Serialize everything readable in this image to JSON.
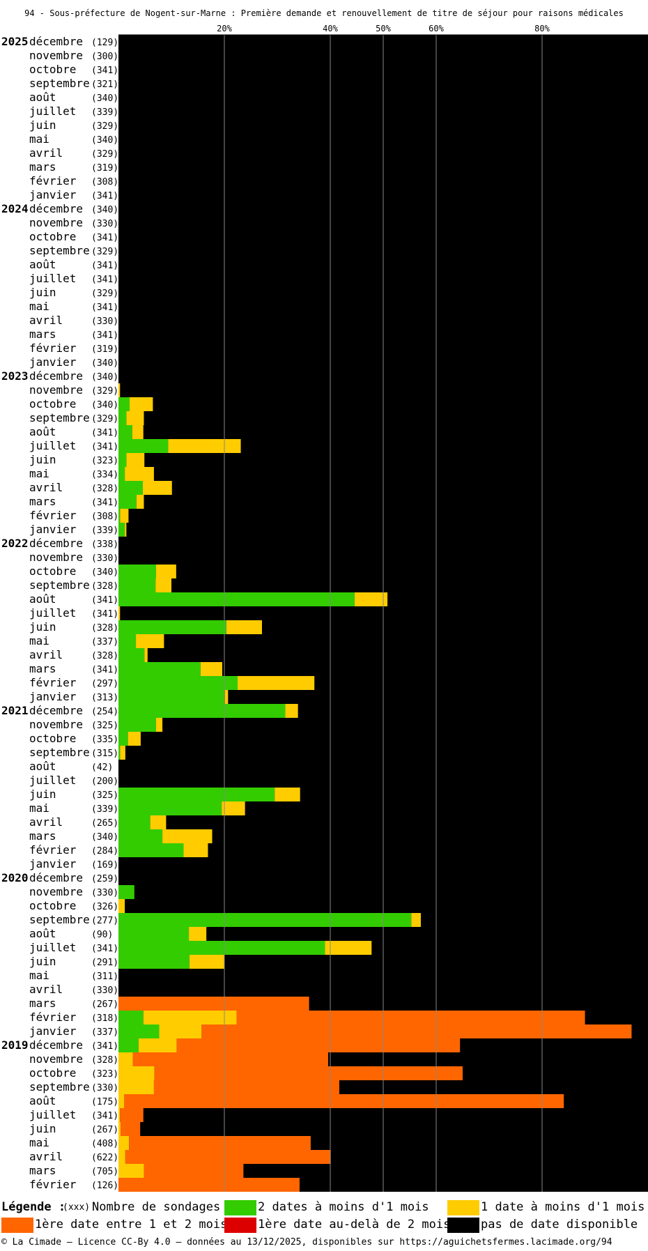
{
  "page": {
    "title": "94 - Sous-préfecture de Nogent-sur-Marne : Première demande et renouvellement de titre de séjour pour raisons médicales",
    "footer": "© La Cimade — Licence CC-By 4.0 — données au 13/12/2025, disponibles sur https://aguichetsfermes.lacimade.org/94"
  },
  "legend": {
    "heading": "Légende :",
    "count_hint": "(xxx)",
    "count_label": "Nombre de sondages",
    "items": [
      {
        "key": "two_dates",
        "label": "2 dates à moins d'1 mois",
        "color": "#33cc00"
      },
      {
        "key": "one_date",
        "label": "1 date à moins d'1 mois",
        "color": "#ffcc00"
      },
      {
        "key": "first_1_2",
        "label": "1ère date entre 1 et 2 mois",
        "color": "#ff6600"
      },
      {
        "key": "first_over_2",
        "label": "1ère date au-delà de 2 mois",
        "color": "#dd0000"
      },
      {
        "key": "none",
        "label": "pas de date disponible",
        "color": "#000000"
      }
    ]
  },
  "chart_data": {
    "type": "bar",
    "orientation": "horizontal",
    "stacked": true,
    "xlim": [
      0,
      100
    ],
    "x_ticks": [
      20,
      40,
      50,
      60,
      80
    ],
    "x_tick_labels": [
      "20%",
      "40%",
      "50%",
      "60%",
      "80%"
    ],
    "grid": true,
    "legend_placement": "bottom",
    "series": [
      {
        "name": "2 dates à moins d'1 mois",
        "color": "#33cc00"
      },
      {
        "name": "1 date à moins d'1 mois",
        "color": "#ffcc00"
      },
      {
        "name": "1ère date entre 1 et 2 mois",
        "color": "#ff6600"
      },
      {
        "name": "1ère date au-delà de 2 mois",
        "color": "#dd0000"
      },
      {
        "name": "pas de date disponible",
        "color": "#000000"
      }
    ],
    "rows": [
      {
        "year": "2025",
        "month": "décembre",
        "count": "(129)",
        "green": 0,
        "yellow": 0,
        "orange": 0,
        "red": 0
      },
      {
        "year": "",
        "month": "novembre",
        "count": "(300)",
        "green": 0,
        "yellow": 0,
        "orange": 0,
        "red": 0
      },
      {
        "year": "",
        "month": "octobre",
        "count": "(341)",
        "green": 0,
        "yellow": 0,
        "orange": 0,
        "red": 0
      },
      {
        "year": "",
        "month": "septembre",
        "count": "(321)",
        "green": 0,
        "yellow": 0,
        "orange": 0,
        "red": 0
      },
      {
        "year": "",
        "month": "août",
        "count": "(340)",
        "green": 0,
        "yellow": 0,
        "orange": 0,
        "red": 0
      },
      {
        "year": "",
        "month": "juillet",
        "count": "(339)",
        "green": 0,
        "yellow": 0,
        "orange": 0,
        "red": 0
      },
      {
        "year": "",
        "month": "juin",
        "count": "(329)",
        "green": 0,
        "yellow": 0,
        "orange": 0,
        "red": 0
      },
      {
        "year": "",
        "month": "mai",
        "count": "(340)",
        "green": 0,
        "yellow": 0,
        "orange": 0,
        "red": 0
      },
      {
        "year": "",
        "month": "avril",
        "count": "(329)",
        "green": 0,
        "yellow": 0,
        "orange": 0,
        "red": 0
      },
      {
        "year": "",
        "month": "mars",
        "count": "(319)",
        "green": 0,
        "yellow": 0,
        "orange": 0,
        "red": 0
      },
      {
        "year": "",
        "month": "février",
        "count": "(308)",
        "green": 0,
        "yellow": 0,
        "orange": 0,
        "red": 0
      },
      {
        "year": "",
        "month": "janvier",
        "count": "(341)",
        "green": 0,
        "yellow": 0,
        "orange": 0,
        "red": 0
      },
      {
        "year": "2024",
        "month": "décembre",
        "count": "(340)",
        "green": 0,
        "yellow": 0,
        "orange": 0,
        "red": 0
      },
      {
        "year": "",
        "month": "novembre",
        "count": "(330)",
        "green": 0,
        "yellow": 0,
        "orange": 0,
        "red": 0
      },
      {
        "year": "",
        "month": "octobre",
        "count": "(341)",
        "green": 0,
        "yellow": 0,
        "orange": 0,
        "red": 0
      },
      {
        "year": "",
        "month": "septembre",
        "count": "(329)",
        "green": 0,
        "yellow": 0,
        "orange": 0,
        "red": 0
      },
      {
        "year": "",
        "month": "août",
        "count": "(341)",
        "green": 0,
        "yellow": 0,
        "orange": 0,
        "red": 0
      },
      {
        "year": "",
        "month": "juillet",
        "count": "(341)",
        "green": 0,
        "yellow": 0,
        "orange": 0,
        "red": 0
      },
      {
        "year": "",
        "month": "juin",
        "count": "(329)",
        "green": 0,
        "yellow": 0,
        "orange": 0,
        "red": 0
      },
      {
        "year": "",
        "month": "mai",
        "count": "(341)",
        "green": 0,
        "yellow": 0,
        "orange": 0,
        "red": 0
      },
      {
        "year": "",
        "month": "avril",
        "count": "(330)",
        "green": 0,
        "yellow": 0,
        "orange": 0,
        "red": 0
      },
      {
        "year": "",
        "month": "mars",
        "count": "(341)",
        "green": 0,
        "yellow": 0,
        "orange": 0,
        "red": 0
      },
      {
        "year": "",
        "month": "février",
        "count": "(319)",
        "green": 0,
        "yellow": 0,
        "orange": 0,
        "red": 0
      },
      {
        "year": "",
        "month": "janvier",
        "count": "(340)",
        "green": 0,
        "yellow": 0,
        "orange": 0,
        "red": 0
      },
      {
        "year": "2023",
        "month": "décembre",
        "count": "(340)",
        "green": 0,
        "yellow": 0,
        "orange": 0,
        "red": 0
      },
      {
        "year": "",
        "month": "novembre",
        "count": "(329)",
        "green": 0,
        "yellow": 0.3,
        "orange": 0,
        "red": 0
      },
      {
        "year": "",
        "month": "octobre",
        "count": "(340)",
        "green": 2.1,
        "yellow": 4.4,
        "orange": 0,
        "red": 0
      },
      {
        "year": "",
        "month": "septembre",
        "count": "(329)",
        "green": 1.5,
        "yellow": 3.3,
        "orange": 0,
        "red": 0
      },
      {
        "year": "",
        "month": "août",
        "count": "(341)",
        "green": 2.6,
        "yellow": 2.1,
        "orange": 0,
        "red": 0
      },
      {
        "year": "",
        "month": "juillet",
        "count": "(341)",
        "green": 9.4,
        "yellow": 13.7,
        "orange": 0,
        "red": 0
      },
      {
        "year": "",
        "month": "juin",
        "count": "(323)",
        "green": 1.5,
        "yellow": 3.4,
        "orange": 0,
        "red": 0
      },
      {
        "year": "",
        "month": "mai",
        "count": "(334)",
        "green": 1.2,
        "yellow": 5.5,
        "orange": 0,
        "red": 0
      },
      {
        "year": "",
        "month": "avril",
        "count": "(328)",
        "green": 4.6,
        "yellow": 5.5,
        "orange": 0,
        "red": 0
      },
      {
        "year": "",
        "month": "mars",
        "count": "(341)",
        "green": 3.4,
        "yellow": 1.4,
        "orange": 0,
        "red": 0
      },
      {
        "year": "",
        "month": "février",
        "count": "(308)",
        "green": 0.3,
        "yellow": 1.6,
        "orange": 0,
        "red": 0
      },
      {
        "year": "",
        "month": "janvier",
        "count": "(339)",
        "green": 1.2,
        "yellow": 0.3,
        "orange": 0,
        "red": 0
      },
      {
        "year": "2022",
        "month": "décembre",
        "count": "(338)",
        "green": 0,
        "yellow": 0,
        "orange": 0,
        "red": 0
      },
      {
        "year": "",
        "month": "novembre",
        "count": "(330)",
        "green": 0,
        "yellow": 0,
        "orange": 0,
        "red": 0
      },
      {
        "year": "",
        "month": "octobre",
        "count": "(340)",
        "green": 7.1,
        "yellow": 3.8,
        "orange": 0,
        "red": 0
      },
      {
        "year": "",
        "month": "septembre",
        "count": "(328)",
        "green": 7.0,
        "yellow": 3.0,
        "orange": 0,
        "red": 0
      },
      {
        "year": "",
        "month": "août",
        "count": "(341)",
        "green": 44.6,
        "yellow": 6.2,
        "orange": 0,
        "red": 0
      },
      {
        "year": "",
        "month": "juillet",
        "count": "(341)",
        "green": 0,
        "yellow": 0.3,
        "orange": 0,
        "red": 0
      },
      {
        "year": "",
        "month": "juin",
        "count": "(328)",
        "green": 20.4,
        "yellow": 6.7,
        "orange": 0,
        "red": 0
      },
      {
        "year": "",
        "month": "mai",
        "count": "(337)",
        "green": 3.3,
        "yellow": 5.3,
        "orange": 0,
        "red": 0
      },
      {
        "year": "",
        "month": "avril",
        "count": "(328)",
        "green": 4.9,
        "yellow": 0.6,
        "orange": 0,
        "red": 0
      },
      {
        "year": "",
        "month": "mars",
        "count": "(341)",
        "green": 15.5,
        "yellow": 4.1,
        "orange": 0,
        "red": 0
      },
      {
        "year": "",
        "month": "février",
        "count": "(297)",
        "green": 22.5,
        "yellow": 14.5,
        "orange": 0,
        "red": 0
      },
      {
        "year": "",
        "month": "janvier",
        "count": "(313)",
        "green": 20.1,
        "yellow": 0.6,
        "orange": 0,
        "red": 0
      },
      {
        "year": "2021",
        "month": "décembre",
        "count": "(254)",
        "green": 31.5,
        "yellow": 2.4,
        "orange": 0,
        "red": 0
      },
      {
        "year": "",
        "month": "novembre",
        "count": "(325)",
        "green": 7.1,
        "yellow": 1.2,
        "orange": 0,
        "red": 0
      },
      {
        "year": "",
        "month": "octobre",
        "count": "(335)",
        "green": 1.8,
        "yellow": 2.4,
        "orange": 0,
        "red": 0
      },
      {
        "year": "",
        "month": "septembre",
        "count": "(315)",
        "green": 0.3,
        "yellow": 1.0,
        "orange": 0,
        "red": 0
      },
      {
        "year": "",
        "month": "août",
        "count": "(42)",
        "green": 0,
        "yellow": 0,
        "orange": 0,
        "red": 0
      },
      {
        "year": "",
        "month": "juillet",
        "count": "(200)",
        "green": 0,
        "yellow": 0,
        "orange": 0,
        "red": 0
      },
      {
        "year": "",
        "month": "juin",
        "count": "(325)",
        "green": 29.5,
        "yellow": 4.8,
        "orange": 0,
        "red": 0
      },
      {
        "year": "",
        "month": "mai",
        "count": "(339)",
        "green": 19.5,
        "yellow": 4.4,
        "orange": 0,
        "red": 0
      },
      {
        "year": "",
        "month": "avril",
        "count": "(265)",
        "green": 6.0,
        "yellow": 3.0,
        "orange": 0,
        "red": 0
      },
      {
        "year": "",
        "month": "mars",
        "count": "(340)",
        "green": 8.3,
        "yellow": 9.4,
        "orange": 0,
        "red": 0
      },
      {
        "year": "",
        "month": "février",
        "count": "(284)",
        "green": 12.3,
        "yellow": 4.6,
        "orange": 0,
        "red": 0
      },
      {
        "year": "",
        "month": "janvier",
        "count": "(169)",
        "green": 0,
        "yellow": 0,
        "orange": 0,
        "red": 0
      },
      {
        "year": "2020",
        "month": "décembre",
        "count": "(259)",
        "green": 0,
        "yellow": 0,
        "orange": 0,
        "red": 0
      },
      {
        "year": "",
        "month": "novembre",
        "count": "(330)",
        "green": 3.0,
        "yellow": 0,
        "orange": 0,
        "red": 0
      },
      {
        "year": "",
        "month": "octobre",
        "count": "(326)",
        "green": 0,
        "yellow": 1.2,
        "orange": 0,
        "red": 0
      },
      {
        "year": "",
        "month": "septembre",
        "count": "(277)",
        "green": 55.3,
        "yellow": 1.8,
        "orange": 0,
        "red": 0
      },
      {
        "year": "",
        "month": "août",
        "count": "(90)",
        "green": 13.3,
        "yellow": 3.3,
        "orange": 0,
        "red": 0
      },
      {
        "year": "",
        "month": "juillet",
        "count": "(341)",
        "green": 39.0,
        "yellow": 8.8,
        "orange": 0,
        "red": 0
      },
      {
        "year": "",
        "month": "juin",
        "count": "(291)",
        "green": 13.4,
        "yellow": 6.6,
        "orange": 0,
        "red": 0
      },
      {
        "year": "",
        "month": "mai",
        "count": "(311)",
        "green": 0,
        "yellow": 0,
        "orange": 0,
        "red": 0
      },
      {
        "year": "",
        "month": "avril",
        "count": "(330)",
        "green": 0,
        "yellow": 0,
        "orange": 0,
        "red": 0
      },
      {
        "year": "",
        "month": "mars",
        "count": "(267)",
        "green": 0,
        "yellow": 0,
        "orange": 36.0,
        "red": 0
      },
      {
        "year": "",
        "month": "février",
        "count": "(318)",
        "green": 4.7,
        "yellow": 17.6,
        "orange": 65.8,
        "red": 0
      },
      {
        "year": "",
        "month": "janvier",
        "count": "(337)",
        "green": 7.7,
        "yellow": 8.0,
        "orange": 81.2,
        "red": 0
      },
      {
        "year": "2019",
        "month": "décembre",
        "count": "(341)",
        "green": 3.8,
        "yellow": 7.2,
        "orange": 53.5,
        "red": 0
      },
      {
        "year": "",
        "month": "novembre",
        "count": "(328)",
        "green": 0,
        "yellow": 2.7,
        "orange": 36.9,
        "red": 0
      },
      {
        "year": "",
        "month": "octobre",
        "count": "(323)",
        "green": 0,
        "yellow": 6.8,
        "orange": 58.2,
        "red": 0
      },
      {
        "year": "",
        "month": "septembre",
        "count": "(330)",
        "green": 0,
        "yellow": 6.7,
        "orange": 35.0,
        "red": 0
      },
      {
        "year": "",
        "month": "août",
        "count": "(175)",
        "green": 0,
        "yellow": 1.1,
        "orange": 83.0,
        "red": 0
      },
      {
        "year": "",
        "month": "juillet",
        "count": "(341)",
        "green": 0,
        "yellow": 0.3,
        "orange": 4.4,
        "red": 0
      },
      {
        "year": "",
        "month": "juin",
        "count": "(267)",
        "green": 0,
        "yellow": 0.4,
        "orange": 3.7,
        "red": 0
      },
      {
        "year": "",
        "month": "mai",
        "count": "(408)",
        "green": 0,
        "yellow": 2.0,
        "orange": 34.3,
        "red": 0
      },
      {
        "year": "",
        "month": "avril",
        "count": "(622)",
        "green": 0,
        "yellow": 1.3,
        "orange": 38.8,
        "red": 0
      },
      {
        "year": "",
        "month": "mars",
        "count": "(705)",
        "green": 0,
        "yellow": 4.8,
        "orange": 18.8,
        "red": 0
      },
      {
        "year": "",
        "month": "février",
        "count": "(126)",
        "green": 0,
        "yellow": 0,
        "orange": 34.2,
        "red": 0
      }
    ]
  }
}
